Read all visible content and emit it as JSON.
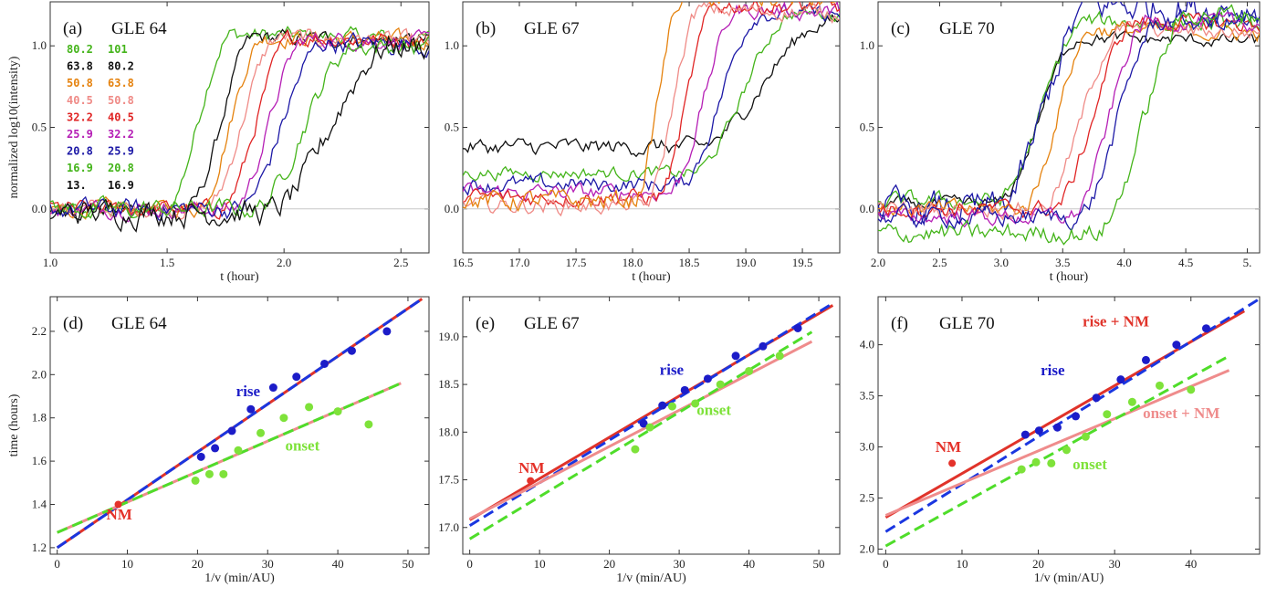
{
  "colors": {
    "green": "#44b41a",
    "black": "#111111",
    "orange": "#e5820e",
    "pink": "#ef8a86",
    "red": "#e02424",
    "magenta": "#b51eb5",
    "blue": "#1c18a6",
    "lightgreen": "#7ee23a",
    "nmred": "#e4322a",
    "fitblue": "#1a36e0",
    "fitred": "#e0332a",
    "fitgreen": "#4fdd2a",
    "fitpink": "#ef8c8c",
    "dotblue": "#1c1cc8",
    "dotgreen": "#7ee23a"
  },
  "legend": {
    "rows": [
      {
        "lo": "80.2",
        "hi": "101",
        "color": "#44b41a"
      },
      {
        "lo": "63.8",
        "hi": "80.2",
        "color": "#111111"
      },
      {
        "lo": "50.8",
        "hi": "63.8",
        "color": "#e5820e"
      },
      {
        "lo": "40.5",
        "hi": "50.8",
        "color": "#ef8a86"
      },
      {
        "lo": "32.2",
        "hi": "40.5",
        "color": "#e02424"
      },
      {
        "lo": "25.9",
        "hi": "32.2",
        "color": "#b51eb5"
      },
      {
        "lo": "20.8",
        "hi": "25.9",
        "color": "#1c18a6"
      },
      {
        "lo": "16.9",
        "hi": "20.8",
        "color": "#44b41a"
      },
      {
        "lo": "13.",
        "hi": "16.9",
        "color": "#111111"
      }
    ]
  },
  "chart_data": [
    {
      "panel": "a",
      "type": "line",
      "label": "(a)",
      "title": "GLE 64",
      "xlabel": "t (hour)",
      "ylabel": "normalized log10(intensity)",
      "xlim": [
        1.0,
        2.62
      ],
      "ylim": [
        -0.27,
        1.27
      ],
      "xticks": [
        1.0,
        1.5,
        2.0,
        2.5
      ],
      "xtick_labels": [
        "1.0",
        "1.5",
        "2.0",
        "2.5"
      ],
      "yticks": [
        0.0,
        0.5,
        1.0
      ],
      "ytick_labels": [
        "0.0",
        "0.5",
        "1.0"
      ],
      "baseline": 0,
      "series": [
        {
          "color": "#44b41a",
          "t0": 1.48,
          "rise": 0.3,
          "plateau": 1.07,
          "pre": -0.02,
          "noise": 0.05
        },
        {
          "color": "#111111",
          "t0": 1.58,
          "rise": 0.3,
          "plateau": 1.05,
          "pre": 0.0,
          "noise": 0.05
        },
        {
          "color": "#e5820e",
          "t0": 1.62,
          "rise": 0.3,
          "plateau": 1.05,
          "pre": 0.0,
          "noise": 0.05
        },
        {
          "color": "#ef8a86",
          "t0": 1.66,
          "rise": 0.32,
          "plateau": 1.05,
          "pre": 0.0,
          "noise": 0.05
        },
        {
          "color": "#e02424",
          "t0": 1.72,
          "rise": 0.32,
          "plateau": 1.05,
          "pre": 0.0,
          "noise": 0.05
        },
        {
          "color": "#b51eb5",
          "t0": 1.77,
          "rise": 0.33,
          "plateau": 1.04,
          "pre": 0.0,
          "noise": 0.05
        },
        {
          "color": "#1c18a6",
          "t0": 1.8,
          "rise": 0.38,
          "plateau": 1.02,
          "pre": 0.0,
          "noise": 0.06
        },
        {
          "color": "#44b41a",
          "t0": 1.86,
          "rise": 0.45,
          "plateau": 1.0,
          "pre": 0.0,
          "noise": 0.06
        },
        {
          "color": "#111111",
          "t0": 1.92,
          "rise": 0.55,
          "plateau": 1.0,
          "pre": -0.02,
          "noise": 0.08
        }
      ]
    },
    {
      "panel": "b",
      "type": "line",
      "label": "(b)",
      "title": "GLE 67",
      "xlabel": "t (hour)",
      "ylabel": "",
      "xlim": [
        16.5,
        19.83
      ],
      "ylim": [
        -0.27,
        1.27
      ],
      "xticks": [
        16.5,
        17.0,
        17.5,
        18.0,
        18.5,
        19.0,
        19.5
      ],
      "xtick_labels": [
        "16.5",
        "17.0",
        "17.5",
        "18.0",
        "18.5",
        "19.0",
        "19.5"
      ],
      "yticks": [
        0.0,
        0.5,
        1.0
      ],
      "ytick_labels": [
        "0.0",
        "0.5",
        "1.0"
      ],
      "baseline": 0,
      "series": [
        {
          "color": "#111111",
          "t0": 18.55,
          "rise": 1.2,
          "plateau": 1.15,
          "pre": 0.38,
          "noise": 0.05
        },
        {
          "color": "#44b41a",
          "t0": 18.5,
          "rise": 0.95,
          "plateau": 1.2,
          "pre": 0.22,
          "noise": 0.04
        },
        {
          "color": "#1c18a6",
          "t0": 18.4,
          "rise": 0.75,
          "plateau": 1.2,
          "pre": 0.15,
          "noise": 0.05
        },
        {
          "color": "#b51eb5",
          "t0": 18.3,
          "rise": 0.65,
          "plateau": 1.22,
          "pre": 0.1,
          "noise": 0.05
        },
        {
          "color": "#e02424",
          "t0": 18.2,
          "rise": 0.55,
          "plateau": 1.25,
          "pre": 0.07,
          "noise": 0.05
        },
        {
          "color": "#ef8a86",
          "t0": 18.1,
          "rise": 0.5,
          "plateau": 1.22,
          "pre": 0.02,
          "noise": 0.05
        },
        {
          "color": "#e5820e",
          "t0": 18.0,
          "rise": 0.45,
          "plateau": 1.3,
          "pre": 0.05,
          "noise": 0.06
        }
      ]
    },
    {
      "panel": "c",
      "type": "line",
      "label": "(c)",
      "title": "GLE 70",
      "xlabel": "t (hour)",
      "ylabel": "",
      "xlim": [
        2.0,
        5.1
      ],
      "ylim": [
        -0.27,
        1.27
      ],
      "xticks": [
        2.0,
        2.5,
        3.0,
        3.5,
        4.0,
        4.5,
        5.0
      ],
      "xtick_labels": [
        "2.0",
        "2.5",
        "3.0",
        "3.5",
        "4.0",
        "4.5",
        "5."
      ],
      "yticks": [
        0.0,
        0.5,
        1.0
      ],
      "ytick_labels": [
        "0.0",
        "0.5",
        "1.0"
      ],
      "baseline": 0,
      "series": [
        {
          "color": "#111111",
          "t0": 2.95,
          "rise": 0.7,
          "plateau": 1.05,
          "pre": 0.03,
          "noise": 0.04
        },
        {
          "color": "#44b41a",
          "t0": 2.95,
          "rise": 0.75,
          "plateau": 1.15,
          "pre": 0.05,
          "noise": 0.05
        },
        {
          "color": "#1c18a6",
          "t0": 2.95,
          "rise": 0.8,
          "plateau": 1.25,
          "pre": 0.0,
          "noise": 0.1
        },
        {
          "color": "#e5820e",
          "t0": 3.15,
          "rise": 0.6,
          "plateau": 1.1,
          "pre": 0.0,
          "noise": 0.05
        },
        {
          "color": "#ef8a86",
          "t0": 3.3,
          "rise": 0.7,
          "plateau": 1.1,
          "pre": 0.0,
          "noise": 0.05
        },
        {
          "color": "#e02424",
          "t0": 3.4,
          "rise": 0.7,
          "plateau": 1.15,
          "pre": 0.0,
          "noise": 0.05
        },
        {
          "color": "#b51eb5",
          "t0": 3.55,
          "rise": 0.65,
          "plateau": 1.15,
          "pre": -0.05,
          "noise": 0.05
        },
        {
          "color": "#1c18a6",
          "t0": 3.6,
          "rise": 0.7,
          "plateau": 1.15,
          "pre": -0.05,
          "noise": 0.06
        },
        {
          "color": "#44b41a",
          "t0": 3.75,
          "rise": 0.8,
          "plateau": 1.2,
          "pre": -0.15,
          "noise": 0.06
        }
      ]
    },
    {
      "panel": "d",
      "type": "scatter",
      "label": "(d)",
      "title": "GLE 64",
      "xlabel": "1/v (min/AU)",
      "ylabel": "time (hours)",
      "xlim": [
        -1,
        53
      ],
      "ylim": [
        1.17,
        2.36
      ],
      "xticks": [
        0,
        10,
        20,
        30,
        40,
        50
      ],
      "xtick_labels": [
        "0",
        "10",
        "20",
        "30",
        "40",
        "50"
      ],
      "yticks": [
        1.2,
        1.4,
        1.6,
        1.8,
        2.0,
        2.2
      ],
      "ytick_labels": [
        "1.2",
        "1.4",
        "1.6",
        "1.8",
        "2.0",
        "2.2"
      ],
      "lines": [
        {
          "name": "rise-fit-red",
          "color": "#e0332a",
          "dash": false,
          "x": [
            0,
            52
          ],
          "y": [
            1.2,
            2.35
          ]
        },
        {
          "name": "rise-fit-blue",
          "color": "#1a36e0",
          "dash": true,
          "x": [
            0,
            52
          ],
          "y": [
            1.2,
            2.35
          ]
        },
        {
          "name": "onset-fit-pink",
          "color": "#ef8c8c",
          "dash": false,
          "x": [
            0,
            49
          ],
          "y": [
            1.27,
            1.96
          ]
        },
        {
          "name": "onset-fit-green",
          "color": "#4fdd2a",
          "dash": true,
          "x": [
            0,
            49
          ],
          "y": [
            1.27,
            1.96
          ]
        }
      ],
      "points": [
        {
          "set": "rise",
          "color": "#1c1cc8",
          "x": [
            20.5,
            22.5,
            24.9,
            27.6,
            30.8,
            34.1,
            38.1,
            42.0,
            47.0
          ],
          "y": [
            1.62,
            1.66,
            1.74,
            1.84,
            1.94,
            1.99,
            2.05,
            2.11,
            2.2
          ]
        },
        {
          "set": "onset",
          "color": "#7ee23a",
          "x": [
            19.7,
            21.7,
            23.7,
            25.8,
            29.0,
            32.3,
            35.9,
            40.0,
            44.4
          ],
          "y": [
            1.51,
            1.54,
            1.54,
            1.65,
            1.73,
            1.8,
            1.85,
            1.83,
            1.77
          ]
        },
        {
          "set": "NM",
          "color": "#e4322a",
          "x": [
            8.7
          ],
          "y": [
            1.4
          ]
        }
      ],
      "annotations": [
        {
          "text": "rise",
          "color": "#1c1cc8",
          "x": 25.5,
          "y": 1.9
        },
        {
          "text": "onset",
          "color": "#7ee23a",
          "x": 32.5,
          "y": 1.65
        },
        {
          "text": "NM",
          "color": "#e4322a",
          "x": 7.0,
          "y": 1.33
        }
      ]
    },
    {
      "panel": "e",
      "type": "scatter",
      "label": "(e)",
      "title": "GLE 67",
      "xlabel": "1/v (min/AU)",
      "ylabel": "",
      "xlim": [
        -1,
        53
      ],
      "ylim": [
        16.72,
        19.42
      ],
      "xticks": [
        0,
        10,
        20,
        30,
        40,
        50
      ],
      "xtick_labels": [
        "0",
        "10",
        "20",
        "30",
        "40",
        "50"
      ],
      "yticks": [
        17.0,
        17.5,
        18.0,
        18.5,
        19.0
      ],
      "ytick_labels": [
        "17.0",
        "17.5",
        "18.0",
        "18.5",
        "19.0"
      ],
      "lines": [
        {
          "name": "nm-fit-red",
          "color": "#e0332a",
          "dash": false,
          "x": [
            0,
            52
          ],
          "y": [
            17.08,
            19.33
          ]
        },
        {
          "name": "rise-fit-blue",
          "color": "#1a36e0",
          "dash": true,
          "x": [
            0,
            52
          ],
          "y": [
            17.02,
            19.35
          ]
        },
        {
          "name": "onset-fit-pink",
          "color": "#ef8c8c",
          "dash": false,
          "x": [
            0,
            49
          ],
          "y": [
            17.09,
            18.95
          ]
        },
        {
          "name": "onset-fit-green",
          "color": "#4fdd2a",
          "dash": true,
          "x": [
            0,
            49
          ],
          "y": [
            16.88,
            19.05
          ]
        }
      ],
      "points": [
        {
          "set": "rise",
          "color": "#1c1cc8",
          "x": [
            24.9,
            27.6,
            30.8,
            34.1,
            38.1,
            42.0,
            47.0
          ],
          "y": [
            18.09,
            18.28,
            18.44,
            18.56,
            18.8,
            18.9,
            19.09
          ]
        },
        {
          "set": "onset",
          "color": "#7ee23a",
          "x": [
            23.7,
            25.8,
            29.0,
            32.3,
            35.9,
            40.0,
            44.4
          ],
          "y": [
            17.82,
            18.05,
            18.27,
            18.3,
            18.5,
            18.64,
            18.8
          ]
        },
        {
          "set": "NM",
          "color": "#e4322a",
          "x": [
            8.7
          ],
          "y": [
            17.49
          ]
        }
      ],
      "annotations": [
        {
          "text": "rise",
          "color": "#1c1cc8",
          "x": 27.2,
          "y": 18.6
        },
        {
          "text": "onset",
          "color": "#7ee23a",
          "x": 32.5,
          "y": 18.18
        },
        {
          "text": "NM",
          "color": "#e4322a",
          "x": 7.0,
          "y": 17.57
        }
      ]
    },
    {
      "panel": "f",
      "type": "scatter",
      "label": "(f)",
      "title": "GLE 70",
      "xlabel": "1/v (min/AU)",
      "ylabel": "",
      "xlim": [
        -1,
        49
      ],
      "ylim": [
        1.95,
        4.47
      ],
      "xticks": [
        0,
        10,
        20,
        30,
        40
      ],
      "xtick_labels": [
        "0",
        "10",
        "20",
        "30",
        "40"
      ],
      "yticks": [
        2.0,
        2.5,
        3.0,
        3.5,
        4.0
      ],
      "ytick_labels": [
        "2.0",
        "2.5",
        "3.0",
        "3.5",
        "4.0"
      ],
      "lines": [
        {
          "name": "rise-nm-fit-red",
          "color": "#e0332a",
          "dash": false,
          "x": [
            0,
            47
          ],
          "y": [
            2.31,
            4.33
          ]
        },
        {
          "name": "rise-fit-blue",
          "color": "#1a36e0",
          "dash": true,
          "x": [
            0,
            49
          ],
          "y": [
            2.17,
            4.45
          ]
        },
        {
          "name": "onset-nm-fit-pink",
          "color": "#ef8c8c",
          "dash": false,
          "x": [
            0,
            45
          ],
          "y": [
            2.33,
            3.75
          ]
        },
        {
          "name": "onset-fit-green",
          "color": "#4fdd2a",
          "dash": true,
          "x": [
            0,
            45
          ],
          "y": [
            2.03,
            3.89
          ]
        }
      ],
      "points": [
        {
          "set": "rise",
          "color": "#1c1cc8",
          "x": [
            18.3,
            20.1,
            22.5,
            24.9,
            27.6,
            30.8,
            34.1,
            38.1,
            42.0
          ],
          "y": [
            3.12,
            3.16,
            3.19,
            3.3,
            3.48,
            3.66,
            3.85,
            4.0,
            4.16
          ]
        },
        {
          "set": "onset",
          "color": "#7ee23a",
          "x": [
            17.8,
            19.7,
            21.7,
            23.7,
            26.2,
            29.0,
            32.3,
            35.9,
            40.0
          ],
          "y": [
            2.78,
            2.85,
            2.84,
            2.97,
            3.1,
            3.32,
            3.44,
            3.6,
            3.56
          ]
        },
        {
          "set": "NM",
          "color": "#e4322a",
          "x": [
            8.7
          ],
          "y": [
            2.84
          ]
        }
      ],
      "annotations": [
        {
          "text": "rise",
          "color": "#1c1cc8",
          "x": 20.3,
          "y": 3.7
        },
        {
          "text": "rise + NM",
          "color": "#e0332a",
          "x": 25.8,
          "y": 4.18
        },
        {
          "text": "onset + NM",
          "color": "#ef8c8c",
          "x": 33.7,
          "y": 3.28
        },
        {
          "text": "onset",
          "color": "#7ee23a",
          "x": 24.5,
          "y": 2.78
        },
        {
          "text": "NM",
          "color": "#e4322a",
          "x": 6.5,
          "y": 2.95
        }
      ]
    }
  ]
}
